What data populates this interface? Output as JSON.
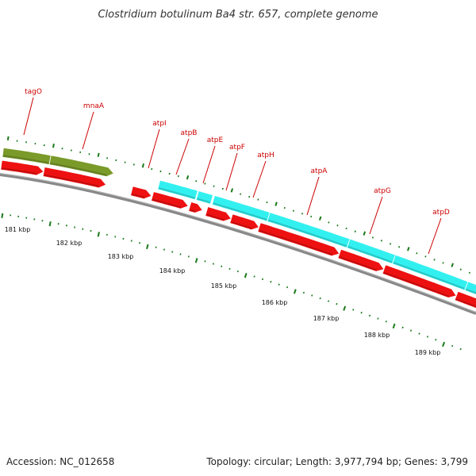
{
  "title": "Clostridium botulinum Ba4 str. 657, complete genome",
  "footer": {
    "accession": "Accession: NC_012658",
    "summary": "Topology: circular; Length: 3,977,794 bp; Genes: 3,799"
  },
  "colors": {
    "gene_olive": "#7a9a2a",
    "gene_cyan": "#33f0f0",
    "cds_red": "#ee1111",
    "backbone": "#888888",
    "tick_green": "#1a7a1a",
    "label_red": "#cc0000"
  },
  "gene_labels": [
    "tagO",
    "mnaA",
    "atpI",
    "atpB",
    "atpE",
    "atpF",
    "atpH",
    "atpA",
    "atpG",
    "atpD"
  ],
  "ticks": [
    "181 kbp",
    "182 kbp",
    "183 kbp",
    "184 kbp",
    "185 kbp",
    "186 kbp",
    "187 kbp",
    "188 kbp",
    "189 kbp"
  ]
}
